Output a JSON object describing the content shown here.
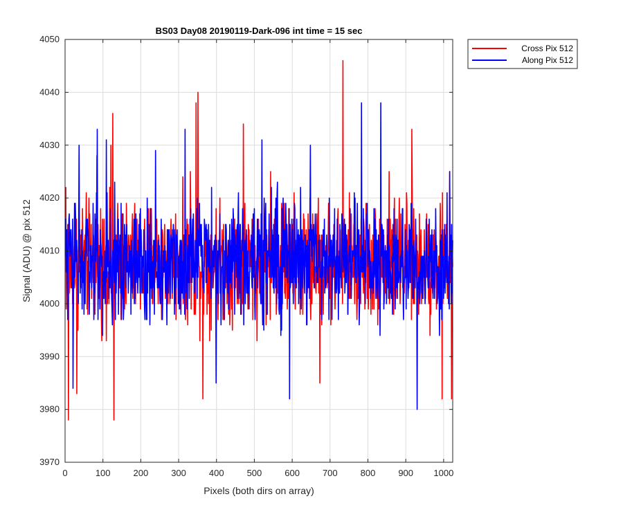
{
  "chart_data": {
    "type": "line",
    "title": "BS03 Day08 20190119-Dark-096 int time = 15 sec",
    "xlabel": "Pixels (both dirs on array)",
    "ylabel": "Signal (ADU) @ pix 512",
    "xlim": [
      0,
      1024
    ],
    "ylim": [
      3970,
      4050
    ],
    "xticks": [
      0,
      100,
      200,
      300,
      400,
      500,
      600,
      700,
      800,
      900,
      1000
    ],
    "yticks": [
      3970,
      3980,
      3990,
      4000,
      4010,
      4020,
      4030,
      4040,
      4050
    ],
    "grid": true,
    "legend_position": "outside-top-right",
    "series": [
      {
        "name": "Cross Pix 512",
        "color": "#ff0000",
        "mean": 4008,
        "noise_amplitude": 7,
        "n_points": 1024,
        "peaks": [
          [
            1,
            4022
          ],
          [
            8,
            3978
          ],
          [
            30,
            3983
          ],
          [
            83,
            4028
          ],
          [
            120,
            4030
          ],
          [
            125,
            4036
          ],
          [
            128,
            3978
          ],
          [
            330,
            4025
          ],
          [
            345,
            4038
          ],
          [
            350,
            4040
          ],
          [
            363,
            3982
          ],
          [
            470,
            4034
          ],
          [
            542,
            4025
          ],
          [
            672,
            3985
          ],
          [
            733,
            4046
          ],
          [
            855,
            4025
          ],
          [
            915,
            4033
          ],
          [
            995,
            3982
          ],
          [
            1015,
            4025
          ],
          [
            1020,
            3982
          ]
        ]
      },
      {
        "name": "Along Pix 512",
        "color": "#0000ff",
        "mean": 4008,
        "noise_amplitude": 7,
        "n_points": 1024,
        "peaks": [
          [
            20,
            3984
          ],
          [
            36,
            4030
          ],
          [
            84,
            4033
          ],
          [
            108,
            4031
          ],
          [
            130,
            4023
          ],
          [
            238,
            4029
          ],
          [
            316,
            4033
          ],
          [
            398,
            3985
          ],
          [
            519,
            4031
          ],
          [
            592,
            3982
          ],
          [
            647,
            4030
          ],
          [
            782,
            4038
          ],
          [
            833,
            4038
          ],
          [
            929,
            3980
          ],
          [
            1015,
            4025
          ]
        ]
      }
    ]
  }
}
